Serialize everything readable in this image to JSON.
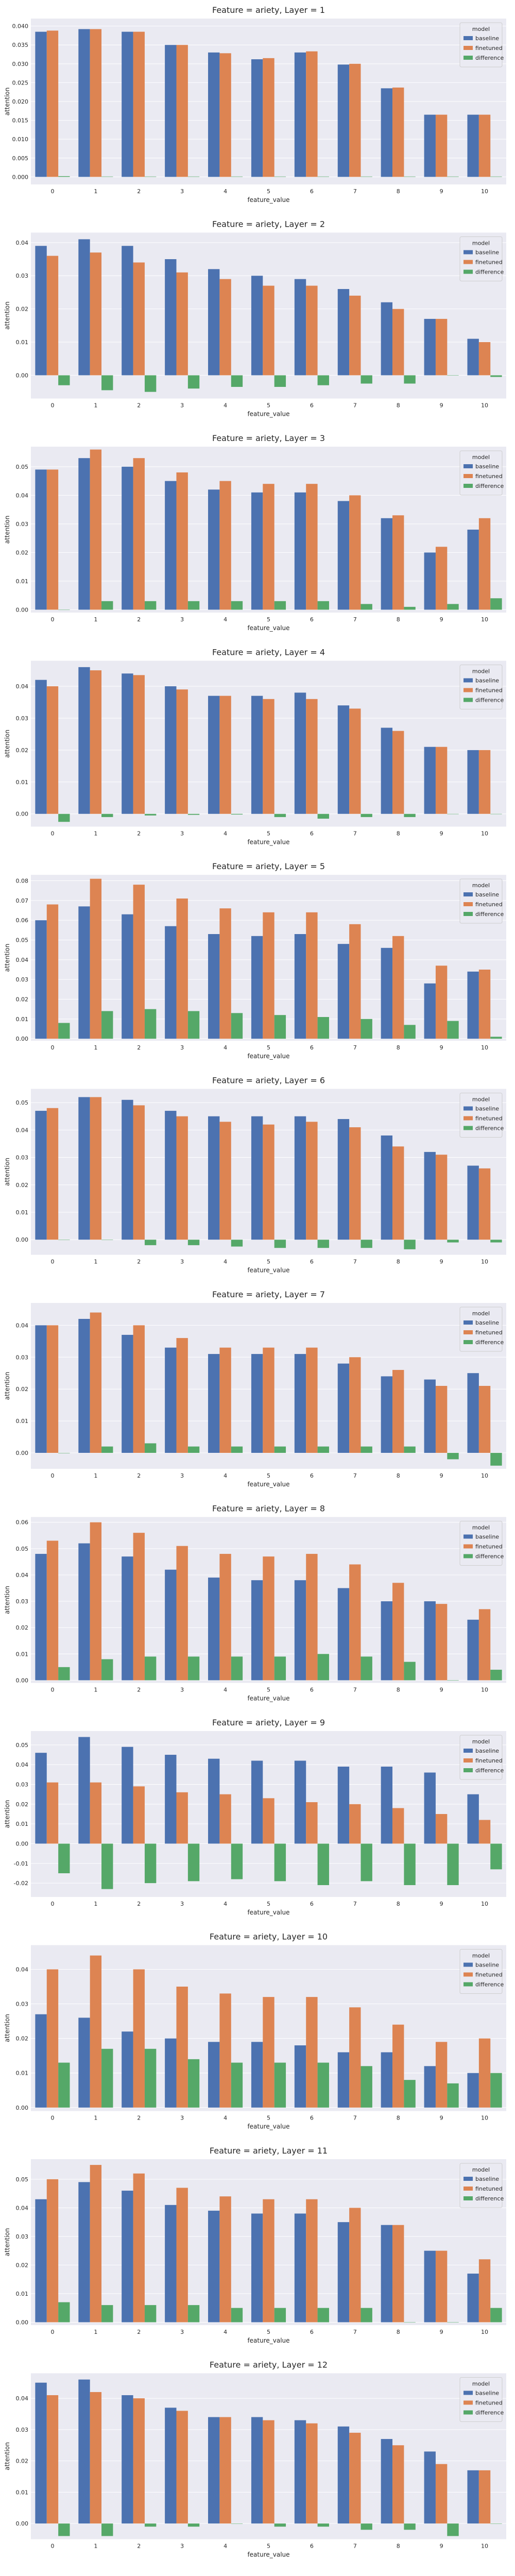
{
  "colors": {
    "baseline": "#4c72b0",
    "finetuned": "#dd8452",
    "difference": "#55a868"
  },
  "chart_data": [
    {
      "type": "bar",
      "title": "Feature = ariety, Layer = 1",
      "xlabel": "feature_value",
      "ylabel": "attention",
      "categories": [
        "0",
        "1",
        "2",
        "3",
        "4",
        "5",
        "6",
        "7",
        "8",
        "9",
        "10"
      ],
      "ylim": [
        -0.002,
        0.042
      ],
      "yticks": [
        0.0,
        0.005,
        0.01,
        0.015,
        0.02,
        0.025,
        0.03,
        0.035,
        0.04
      ],
      "tick_decimals": 3,
      "legend": {
        "title": "model",
        "position": "top-right"
      },
      "series": [
        {
          "name": "baseline",
          "values": [
            0.0385,
            0.0392,
            0.0385,
            0.035,
            0.033,
            0.0312,
            0.033,
            0.0298,
            0.0235,
            0.0165,
            0.0165
          ]
        },
        {
          "name": "finetuned",
          "values": [
            0.0388,
            0.0392,
            0.0385,
            0.035,
            0.0328,
            0.0315,
            0.0333,
            0.03,
            0.0237,
            0.0165,
            0.0165
          ]
        },
        {
          "name": "difference",
          "values": [
            0.0002,
            0.0001,
            0.0001,
            0.0001,
            0.0001,
            0.0001,
            0.0001,
            0.0001,
            0.0001,
            0.0001,
            0.0001
          ]
        }
      ]
    },
    {
      "type": "bar",
      "title": "Feature = ariety, Layer = 2",
      "xlabel": "feature_value",
      "ylabel": "attention",
      "categories": [
        "0",
        "1",
        "2",
        "3",
        "4",
        "5",
        "6",
        "7",
        "8",
        "9",
        "10"
      ],
      "ylim": [
        -0.007,
        0.043
      ],
      "yticks": [
        0.0,
        0.01,
        0.02,
        0.03,
        0.04
      ],
      "tick_decimals": 2,
      "legend": {
        "title": "model",
        "position": "top-right"
      },
      "series": [
        {
          "name": "baseline",
          "values": [
            0.039,
            0.041,
            0.039,
            0.035,
            0.032,
            0.03,
            0.029,
            0.026,
            0.022,
            0.017,
            0.011
          ]
        },
        {
          "name": "finetuned",
          "values": [
            0.036,
            0.037,
            0.034,
            0.031,
            0.029,
            0.027,
            0.027,
            0.024,
            0.02,
            0.017,
            0.01
          ]
        },
        {
          "name": "difference",
          "values": [
            -0.003,
            -0.0045,
            -0.005,
            -0.004,
            -0.0035,
            -0.0035,
            -0.003,
            -0.0025,
            -0.0025,
            0.0,
            -0.0005
          ]
        }
      ]
    },
    {
      "type": "bar",
      "title": "Feature = ariety, Layer = 3",
      "xlabel": "feature_value",
      "ylabel": "attention",
      "categories": [
        "0",
        "1",
        "2",
        "3",
        "4",
        "5",
        "6",
        "7",
        "8",
        "9",
        "10"
      ],
      "ylim": [
        -0.001,
        0.057
      ],
      "yticks": [
        0.0,
        0.01,
        0.02,
        0.03,
        0.04,
        0.05
      ],
      "tick_decimals": 2,
      "legend": {
        "title": "model",
        "position": "top-right"
      },
      "series": [
        {
          "name": "baseline",
          "values": [
            0.049,
            0.053,
            0.05,
            0.045,
            0.042,
            0.041,
            0.041,
            0.038,
            0.032,
            0.02,
            0.028
          ]
        },
        {
          "name": "finetuned",
          "values": [
            0.049,
            0.056,
            0.053,
            0.048,
            0.045,
            0.044,
            0.044,
            0.04,
            0.033,
            0.022,
            0.032
          ]
        },
        {
          "name": "difference",
          "values": [
            0.0,
            0.003,
            0.003,
            0.003,
            0.003,
            0.003,
            0.003,
            0.002,
            0.001,
            0.002,
            0.004
          ]
        }
      ]
    },
    {
      "type": "bar",
      "title": "Feature = ariety, Layer = 4",
      "xlabel": "feature_value",
      "ylabel": "attention",
      "categories": [
        "0",
        "1",
        "2",
        "3",
        "4",
        "5",
        "6",
        "7",
        "8",
        "9",
        "10"
      ],
      "ylim": [
        -0.004,
        0.048
      ],
      "yticks": [
        0.0,
        0.01,
        0.02,
        0.03,
        0.04
      ],
      "tick_decimals": 2,
      "legend": {
        "title": "model",
        "position": "top-right"
      },
      "series": [
        {
          "name": "baseline",
          "values": [
            0.042,
            0.046,
            0.044,
            0.04,
            0.037,
            0.037,
            0.038,
            0.034,
            0.027,
            0.021,
            0.02
          ]
        },
        {
          "name": "finetuned",
          "values": [
            0.04,
            0.045,
            0.0435,
            0.039,
            0.037,
            0.036,
            0.036,
            0.033,
            0.026,
            0.021,
            0.02
          ]
        },
        {
          "name": "difference",
          "values": [
            -0.0025,
            -0.001,
            -0.0005,
            -0.0003,
            -0.0002,
            -0.001,
            -0.0015,
            -0.001,
            -0.001,
            0.0,
            0.0
          ]
        }
      ]
    },
    {
      "type": "bar",
      "title": "Feature = ariety, Layer = 5",
      "xlabel": "feature_value",
      "ylabel": "attention",
      "categories": [
        "0",
        "1",
        "2",
        "3",
        "4",
        "5",
        "6",
        "7",
        "8",
        "9",
        "10"
      ],
      "ylim": [
        -0.001,
        0.083
      ],
      "yticks": [
        0.0,
        0.01,
        0.02,
        0.03,
        0.04,
        0.05,
        0.06,
        0.07,
        0.08
      ],
      "tick_decimals": 2,
      "legend": {
        "title": "model",
        "position": "top-right"
      },
      "series": [
        {
          "name": "baseline",
          "values": [
            0.06,
            0.067,
            0.063,
            0.057,
            0.053,
            0.052,
            0.053,
            0.048,
            0.046,
            0.028,
            0.034
          ]
        },
        {
          "name": "finetuned",
          "values": [
            0.068,
            0.081,
            0.078,
            0.071,
            0.066,
            0.064,
            0.064,
            0.058,
            0.052,
            0.037,
            0.035
          ]
        },
        {
          "name": "difference",
          "values": [
            0.008,
            0.014,
            0.015,
            0.014,
            0.013,
            0.012,
            0.011,
            0.01,
            0.007,
            0.009,
            0.001
          ]
        }
      ]
    },
    {
      "type": "bar",
      "title": "Feature = ariety, Layer = 6",
      "xlabel": "feature_value",
      "ylabel": "attention",
      "categories": [
        "0",
        "1",
        "2",
        "3",
        "4",
        "5",
        "6",
        "7",
        "8",
        "9",
        "10"
      ],
      "ylim": [
        -0.0055,
        0.055
      ],
      "yticks": [
        0.0,
        0.01,
        0.02,
        0.03,
        0.04,
        0.05
      ],
      "tick_decimals": 2,
      "legend": {
        "title": "model",
        "position": "top-right"
      },
      "series": [
        {
          "name": "baseline",
          "values": [
            0.047,
            0.052,
            0.051,
            0.047,
            0.045,
            0.045,
            0.045,
            0.044,
            0.038,
            0.032,
            0.027
          ]
        },
        {
          "name": "finetuned",
          "values": [
            0.048,
            0.052,
            0.049,
            0.045,
            0.043,
            0.042,
            0.043,
            0.041,
            0.034,
            0.031,
            0.026
          ]
        },
        {
          "name": "difference",
          "values": [
            0.0,
            0.0,
            -0.002,
            -0.002,
            -0.0025,
            -0.003,
            -0.003,
            -0.003,
            -0.0035,
            -0.001,
            -0.001
          ]
        }
      ]
    },
    {
      "type": "bar",
      "title": "Feature = ariety, Layer = 7",
      "xlabel": "feature_value",
      "ylabel": "attention",
      "categories": [
        "0",
        "1",
        "2",
        "3",
        "4",
        "5",
        "6",
        "7",
        "8",
        "9",
        "10"
      ],
      "ylim": [
        -0.005,
        0.047
      ],
      "yticks": [
        0.0,
        0.01,
        0.02,
        0.03,
        0.04
      ],
      "tick_decimals": 2,
      "legend": {
        "title": "model",
        "position": "top-right"
      },
      "series": [
        {
          "name": "baseline",
          "values": [
            0.04,
            0.042,
            0.037,
            0.033,
            0.031,
            0.031,
            0.031,
            0.028,
            0.024,
            0.023,
            0.025
          ]
        },
        {
          "name": "finetuned",
          "values": [
            0.04,
            0.044,
            0.04,
            0.036,
            0.033,
            0.033,
            0.033,
            0.03,
            0.026,
            0.021,
            0.021
          ]
        },
        {
          "name": "difference",
          "values": [
            0.0,
            0.002,
            0.003,
            0.002,
            0.002,
            0.002,
            0.002,
            0.002,
            0.002,
            -0.002,
            -0.004
          ]
        }
      ]
    },
    {
      "type": "bar",
      "title": "Feature = ariety, Layer = 8",
      "xlabel": "feature_value",
      "ylabel": "attention",
      "categories": [
        "0",
        "1",
        "2",
        "3",
        "4",
        "5",
        "6",
        "7",
        "8",
        "9",
        "10"
      ],
      "ylim": [
        -0.001,
        0.062
      ],
      "yticks": [
        0.0,
        0.01,
        0.02,
        0.03,
        0.04,
        0.05,
        0.06
      ],
      "tick_decimals": 2,
      "legend": {
        "title": "model",
        "position": "top-right"
      },
      "series": [
        {
          "name": "baseline",
          "values": [
            0.048,
            0.052,
            0.047,
            0.042,
            0.039,
            0.038,
            0.038,
            0.035,
            0.03,
            0.03,
            0.023
          ]
        },
        {
          "name": "finetuned",
          "values": [
            0.053,
            0.06,
            0.056,
            0.051,
            0.048,
            0.047,
            0.048,
            0.044,
            0.037,
            0.029,
            0.027
          ]
        },
        {
          "name": "difference",
          "values": [
            0.005,
            0.008,
            0.009,
            0.009,
            0.009,
            0.009,
            0.01,
            0.009,
            0.007,
            0.0,
            0.004
          ]
        }
      ]
    },
    {
      "type": "bar",
      "title": "Feature = ariety, Layer = 9",
      "xlabel": "feature_value",
      "ylabel": "attention",
      "categories": [
        "0",
        "1",
        "2",
        "3",
        "4",
        "5",
        "6",
        "7",
        "8",
        "9",
        "10"
      ],
      "ylim": [
        -0.027,
        0.057
      ],
      "yticks": [
        -0.02,
        -0.01,
        0.0,
        0.01,
        0.02,
        0.03,
        0.04,
        0.05
      ],
      "tick_decimals": 2,
      "legend": {
        "title": "model",
        "position": "top-right"
      },
      "series": [
        {
          "name": "baseline",
          "values": [
            0.046,
            0.054,
            0.049,
            0.045,
            0.043,
            0.042,
            0.042,
            0.039,
            0.039,
            0.036,
            0.025
          ]
        },
        {
          "name": "finetuned",
          "values": [
            0.031,
            0.031,
            0.029,
            0.026,
            0.025,
            0.023,
            0.021,
            0.02,
            0.018,
            0.015,
            0.012
          ]
        },
        {
          "name": "difference",
          "values": [
            -0.015,
            -0.023,
            -0.02,
            -0.019,
            -0.018,
            -0.019,
            -0.021,
            -0.019,
            -0.021,
            -0.021,
            -0.013
          ]
        }
      ]
    },
    {
      "type": "bar",
      "title": "Feature = ariety, Layer = 10",
      "xlabel": "feature_value",
      "ylabel": "attention",
      "categories": [
        "0",
        "1",
        "2",
        "3",
        "4",
        "5",
        "6",
        "7",
        "8",
        "9",
        "10"
      ],
      "ylim": [
        -0.001,
        0.047
      ],
      "yticks": [
        0.0,
        0.01,
        0.02,
        0.03,
        0.04
      ],
      "tick_decimals": 2,
      "legend": {
        "title": "model",
        "position": "top-right"
      },
      "series": [
        {
          "name": "baseline",
          "values": [
            0.027,
            0.026,
            0.022,
            0.02,
            0.019,
            0.019,
            0.018,
            0.016,
            0.016,
            0.012,
            0.01
          ]
        },
        {
          "name": "finetuned",
          "values": [
            0.04,
            0.044,
            0.04,
            0.035,
            0.033,
            0.032,
            0.032,
            0.029,
            0.024,
            0.019,
            0.02
          ]
        },
        {
          "name": "difference",
          "values": [
            0.013,
            0.017,
            0.017,
            0.014,
            0.013,
            0.013,
            0.013,
            0.012,
            0.008,
            0.007,
            0.01
          ]
        }
      ]
    },
    {
      "type": "bar",
      "title": "Feature = ariety, Layer = 11",
      "xlabel": "feature_value",
      "ylabel": "attention",
      "categories": [
        "0",
        "1",
        "2",
        "3",
        "4",
        "5",
        "6",
        "7",
        "8",
        "9",
        "10"
      ],
      "ylim": [
        -0.001,
        0.057
      ],
      "yticks": [
        0.0,
        0.01,
        0.02,
        0.03,
        0.04,
        0.05
      ],
      "tick_decimals": 2,
      "legend": {
        "title": "model",
        "position": "top-right"
      },
      "series": [
        {
          "name": "baseline",
          "values": [
            0.043,
            0.049,
            0.046,
            0.041,
            0.039,
            0.038,
            0.038,
            0.035,
            0.034,
            0.025,
            0.017
          ]
        },
        {
          "name": "finetuned",
          "values": [
            0.05,
            0.055,
            0.052,
            0.047,
            0.044,
            0.043,
            0.043,
            0.04,
            0.034,
            0.025,
            0.022
          ]
        },
        {
          "name": "difference",
          "values": [
            0.007,
            0.006,
            0.006,
            0.006,
            0.005,
            0.005,
            0.005,
            0.005,
            0.0,
            0.0,
            0.005
          ]
        }
      ]
    },
    {
      "type": "bar",
      "title": "Feature = ariety, Layer = 12",
      "xlabel": "feature_value",
      "ylabel": "attention",
      "categories": [
        "0",
        "1",
        "2",
        "3",
        "4",
        "5",
        "6",
        "7",
        "8",
        "9",
        "10"
      ],
      "ylim": [
        -0.005,
        0.048
      ],
      "yticks": [
        0.0,
        0.01,
        0.02,
        0.03,
        0.04
      ],
      "tick_decimals": 2,
      "legend": {
        "title": "model",
        "position": "top-right"
      },
      "series": [
        {
          "name": "baseline",
          "values": [
            0.045,
            0.046,
            0.041,
            0.037,
            0.034,
            0.034,
            0.033,
            0.031,
            0.027,
            0.023,
            0.017
          ]
        },
        {
          "name": "finetuned",
          "values": [
            0.041,
            0.042,
            0.04,
            0.036,
            0.034,
            0.033,
            0.032,
            0.029,
            0.025,
            0.019,
            0.017
          ]
        },
        {
          "name": "difference",
          "values": [
            -0.004,
            -0.004,
            -0.001,
            -0.001,
            0.0,
            -0.001,
            -0.001,
            -0.002,
            -0.002,
            -0.004,
            0.0
          ]
        }
      ]
    }
  ]
}
